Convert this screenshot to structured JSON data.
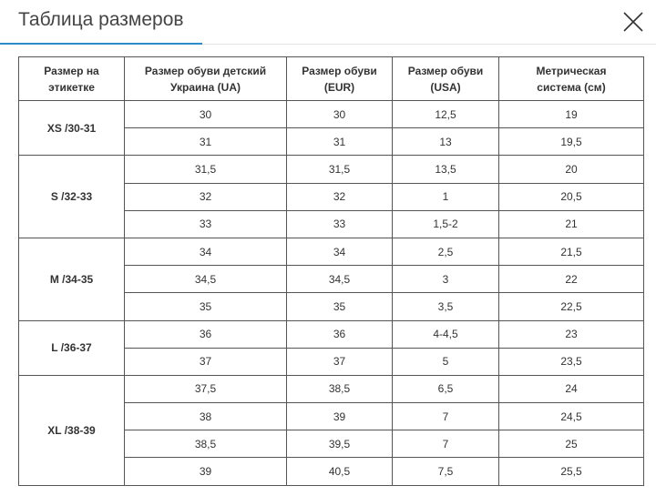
{
  "header": {
    "title": "Таблица размеров"
  },
  "table": {
    "headers": [
      "Размер на этикетке",
      "Размер обуви детский Украина (UA)",
      "Размер обуви (EUR)",
      "Размер обуви (USA)",
      "Метрическая система (см)"
    ],
    "groups": [
      {
        "label": "XS /30-31",
        "rows": [
          [
            "30",
            "30",
            "12,5",
            "19"
          ],
          [
            "31",
            "31",
            "13",
            "19,5"
          ]
        ]
      },
      {
        "label": "S /32-33",
        "rows": [
          [
            "31,5",
            "31,5",
            "13,5",
            "20"
          ],
          [
            "32",
            "32",
            "1",
            "20,5"
          ],
          [
            "33",
            "33",
            "1,5-2",
            "21"
          ]
        ]
      },
      {
        "label": "M /34-35",
        "rows": [
          [
            "34",
            "34",
            "2,5",
            "21,5"
          ],
          [
            "34,5",
            "34,5",
            "3",
            "22"
          ],
          [
            "35",
            "35",
            "3,5",
            "22,5"
          ]
        ]
      },
      {
        "label": "L /36-37",
        "rows": [
          [
            "36",
            "36",
            "4-4,5",
            "23"
          ],
          [
            "37",
            "37",
            "5",
            "23,5"
          ]
        ]
      },
      {
        "label": "XL /38-39",
        "rows": [
          [
            "37,5",
            "38,5",
            "6,5",
            "24"
          ],
          [
            "38",
            "39",
            "7",
            "24,5"
          ],
          [
            "38,5",
            "39,5",
            "7",
            "25"
          ],
          [
            "39",
            "40,5",
            "7,5",
            "25,5"
          ]
        ]
      }
    ]
  }
}
